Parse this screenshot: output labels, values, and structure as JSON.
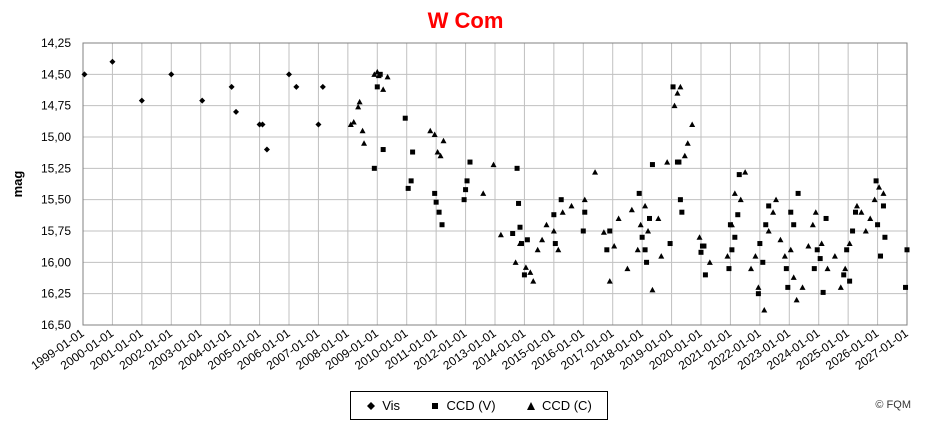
{
  "chart_data": {
    "type": "scatter",
    "title": "W Com",
    "ylabel": "mag",
    "xlabel": "",
    "ylim": [
      16.5,
      14.25
    ],
    "y_reversed": true,
    "y_ticks": [
      "14,25",
      "14,50",
      "14,75",
      "15,00",
      "15,25",
      "15,50",
      "15,75",
      "16,00",
      "16,25",
      "16,50"
    ],
    "x_ticks": [
      "1999-01-01",
      "2000-01-01",
      "2001-01-01",
      "2002-01-01",
      "2003-01-01",
      "2004-01-01",
      "2005-01-01",
      "2006-01-01",
      "2007-01-01",
      "2008-01-01",
      "2009-01-01",
      "2010-01-01",
      "2011-01-01",
      "2012-01-01",
      "2013-01-01",
      "2014-01-01",
      "2015-01-01",
      "2016-01-01",
      "2017-01-01",
      "2018-01-01",
      "2019-01-01",
      "2020-01-01",
      "2021-01-01",
      "2022-01-01",
      "2023-01-01",
      "2024-01-01",
      "2025-01-01",
      "2026-01-01",
      "2027-01-01"
    ],
    "xlim": [
      1999.0,
      2027.0
    ],
    "grid": true,
    "legend_position": "bottom",
    "series": [
      {
        "name": "Vis",
        "marker": "diamond",
        "color": "#000000",
        "x": [
          1999.05,
          2000.0,
          2001.0,
          2002.0,
          2003.05,
          2004.05,
          2004.2,
          2005.0,
          2005.1,
          2005.25,
          2006.0,
          2006.25,
          2007.0,
          2007.15
        ],
        "y": [
          14.5,
          14.4,
          14.71,
          14.5,
          14.71,
          14.6,
          14.8,
          14.9,
          14.9,
          15.1,
          14.5,
          14.6,
          14.9,
          14.6
        ]
      },
      {
        "name": "CCD (V)",
        "marker": "square",
        "color": "#000000",
        "x": [
          2008.9,
          2009.0,
          2009.1,
          2009.2,
          2009.95,
          2010.05,
          2010.15,
          2010.2,
          2010.95,
          2011.0,
          2011.1,
          2011.2,
          2011.95,
          2012.0,
          2012.05,
          2012.15,
          2013.6,
          2013.75,
          2013.8,
          2013.85,
          2013.9,
          2014.0,
          2014.1,
          2015.0,
          2015.05,
          2015.25,
          2016.0,
          2016.05,
          2016.8,
          2016.9,
          2017.9,
          2018.0,
          2018.1,
          2018.15,
          2018.25,
          2018.35,
          2018.95,
          2019.05,
          2019.2,
          2019.25,
          2019.3,
          2019.35,
          2020.0,
          2020.05,
          2020.1,
          2020.15,
          2020.95,
          2021.0,
          2021.05,
          2021.15,
          2021.25,
          2021.3,
          2021.95,
          2022.0,
          2022.1,
          2022.2,
          2022.3,
          2022.9,
          2022.95,
          2023.05,
          2023.15,
          2023.3,
          2023.85,
          2023.95,
          2024.05,
          2024.15,
          2024.25,
          2024.85,
          2024.95,
          2025.05,
          2025.15,
          2025.25,
          2025.95,
          2026.0,
          2026.1,
          2026.2,
          2026.25,
          2026.95,
          2027.0
        ],
        "y": [
          15.25,
          14.6,
          14.5,
          15.1,
          14.85,
          15.41,
          15.35,
          15.12,
          15.45,
          15.52,
          15.6,
          15.7,
          15.5,
          15.42,
          15.35,
          15.2,
          15.77,
          15.25,
          15.53,
          15.72,
          15.85,
          16.1,
          15.82,
          15.62,
          15.85,
          15.5,
          15.75,
          15.6,
          15.9,
          15.75,
          15.45,
          15.8,
          15.9,
          16.0,
          15.65,
          15.22,
          15.85,
          14.6,
          15.2,
          15.2,
          15.5,
          15.6,
          15.92,
          15.87,
          15.87,
          16.1,
          16.05,
          15.7,
          15.9,
          15.8,
          15.62,
          15.3,
          16.25,
          15.85,
          16.0,
          15.7,
          15.55,
          16.05,
          16.2,
          15.6,
          15.7,
          15.45,
          16.05,
          15.9,
          15.97,
          16.24,
          15.65,
          16.1,
          15.9,
          16.15,
          15.75,
          15.6,
          15.35,
          15.7,
          15.95,
          15.55,
          15.8,
          16.2,
          15.9
        ]
      },
      {
        "name": "CCD (C)",
        "marker": "triangle",
        "color": "#000000",
        "x": [
          2008.1,
          2008.2,
          2008.35,
          2008.4,
          2008.5,
          2008.55,
          2008.9,
          2009.0,
          2009.05,
          2009.2,
          2009.35,
          2010.8,
          2010.95,
          2011.05,
          2011.15,
          2011.25,
          2012.6,
          2012.95,
          2013.2,
          2013.7,
          2013.85,
          2014.05,
          2014.2,
          2014.3,
          2014.45,
          2014.6,
          2014.75,
          2015.0,
          2015.15,
          2015.3,
          2015.6,
          2016.05,
          2016.4,
          2016.7,
          2016.9,
          2017.05,
          2017.2,
          2017.5,
          2017.65,
          2017.85,
          2017.95,
          2018.1,
          2018.2,
          2018.35,
          2018.55,
          2018.65,
          2018.85,
          2019.1,
          2019.2,
          2019.3,
          2019.45,
          2019.55,
          2019.7,
          2019.95,
          2020.3,
          2020.9,
          2021.05,
          2021.15,
          2021.35,
          2021.5,
          2021.7,
          2021.85,
          2021.95,
          2022.15,
          2022.3,
          2022.45,
          2022.55,
          2022.7,
          2022.85,
          2023.05,
          2023.15,
          2023.25,
          2023.45,
          2023.65,
          2023.8,
          2023.9,
          2024.1,
          2024.3,
          2024.55,
          2024.75,
          2024.9,
          2025.05,
          2025.3,
          2025.45,
          2025.6,
          2025.75,
          2025.9,
          2026.05,
          2026.2
        ],
        "y": [
          14.9,
          14.88,
          14.76,
          14.72,
          14.95,
          15.05,
          14.5,
          14.48,
          14.51,
          14.62,
          14.52,
          14.95,
          14.98,
          15.12,
          15.15,
          15.03,
          15.45,
          15.22,
          15.78,
          16.0,
          15.85,
          16.04,
          16.08,
          16.15,
          15.9,
          15.82,
          15.7,
          15.75,
          15.9,
          15.6,
          15.55,
          15.5,
          15.28,
          15.76,
          16.15,
          15.87,
          15.65,
          16.05,
          15.58,
          15.9,
          15.7,
          15.55,
          15.75,
          16.22,
          15.65,
          15.95,
          15.2,
          14.75,
          14.65,
          14.6,
          15.15,
          15.05,
          14.9,
          15.8,
          16.0,
          15.95,
          15.7,
          15.45,
          15.5,
          15.28,
          16.05,
          15.95,
          16.2,
          16.38,
          15.75,
          15.6,
          15.5,
          15.82,
          15.95,
          15.9,
          16.12,
          16.3,
          16.2,
          15.87,
          15.7,
          15.6,
          15.85,
          16.05,
          15.95,
          16.2,
          16.05,
          15.85,
          15.55,
          15.6,
          15.75,
          15.65,
          15.5,
          15.4,
          15.45
        ]
      }
    ]
  },
  "legend": {
    "items": [
      "Vis",
      "CCD (V)",
      "CCD (C)"
    ]
  },
  "copyright": "© FQM"
}
